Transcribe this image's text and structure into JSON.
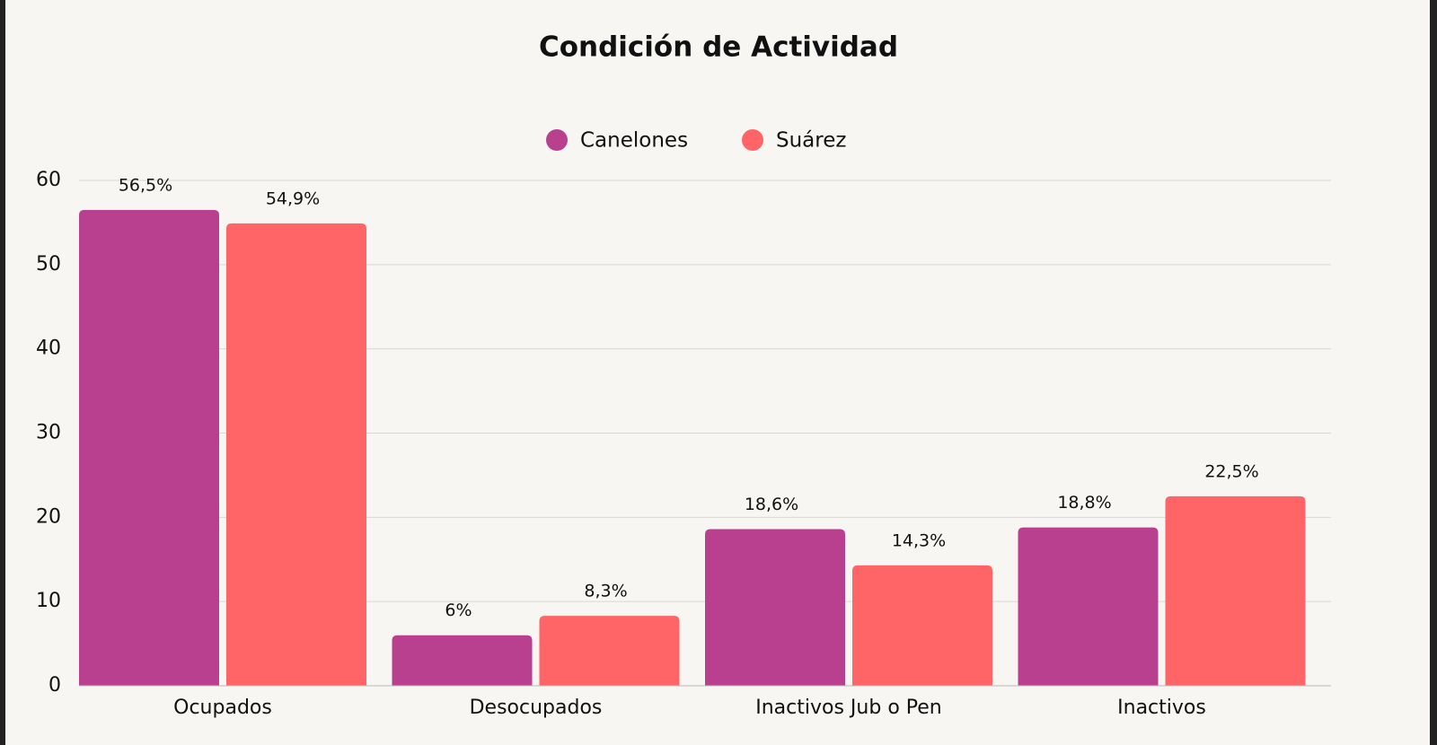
{
  "chart_data": {
    "type": "bar",
    "title": "Condición de Actividad",
    "categories": [
      "Ocupados",
      "Desocupados",
      "Inactivos Jub o Pen",
      "Inactivos"
    ],
    "series": [
      {
        "name": "Canelones",
        "color": "#b9408e",
        "values": [
          56.5,
          6,
          18.6,
          18.8
        ],
        "value_labels": [
          "56,5%",
          "6%",
          "18,6%",
          "18,8%"
        ]
      },
      {
        "name": "Suárez",
        "color": "#ff6567",
        "values": [
          54.9,
          8.3,
          14.3,
          22.5
        ],
        "value_labels": [
          "54,9%",
          "8,3%",
          "14,3%",
          "22,5%"
        ]
      }
    ],
    "ylim": [
      0,
      60
    ],
    "yticks": [
      0,
      10,
      20,
      30,
      40,
      50,
      60
    ],
    "grid": true,
    "legend": "top"
  }
}
